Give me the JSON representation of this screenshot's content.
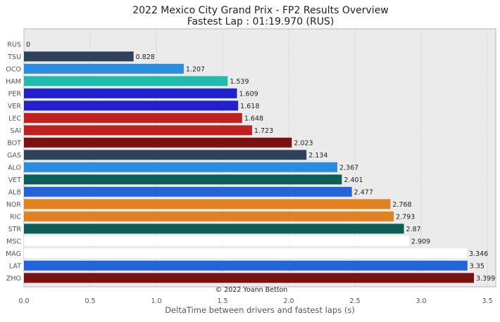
{
  "chart_data": {
    "type": "bar",
    "orientation": "horizontal",
    "title": "2022 Mexico City Grand Prix - FP2 Results Overview",
    "subtitle": "Fastest Lap : 01:19.970 (RUS)",
    "xlabel": "DeltaTime between drivers and fastest laps (s)",
    "ylabel": "",
    "xlim": [
      0,
      3.55
    ],
    "xticks": [
      "0.0",
      "0.5",
      "1.0",
      "1.5",
      "2.0",
      "2.5",
      "3.0",
      "3.5"
    ],
    "grid": true,
    "watermark": "© 2022 Yoann Betton",
    "categories": [
      "RUS",
      "TSU",
      "OCO",
      "HAM",
      "PER",
      "VER",
      "LEC",
      "SAI",
      "BOT",
      "GAS",
      "ALO",
      "VET",
      "ALB",
      "NOR",
      "RIC",
      "STR",
      "MSC",
      "MAG",
      "LAT",
      "ZHO"
    ],
    "values": [
      0,
      0.828,
      1.207,
      1.539,
      1.609,
      1.618,
      1.648,
      1.723,
      2.023,
      2.134,
      2.367,
      2.401,
      2.477,
      2.768,
      2.793,
      2.87,
      2.909,
      3.346,
      3.35,
      3.399
    ],
    "value_labels": [
      "0",
      "0.828",
      "1.207",
      "1.539",
      "1.609",
      "1.618",
      "1.648",
      "1.723",
      "2.023",
      "2.134",
      "2.367",
      "2.401",
      "2.477",
      "2.768",
      "2.793",
      "2.87",
      "2.909",
      "3.346",
      "3.35",
      "3.399"
    ],
    "colors": [
      "#2bd4c0",
      "#2f4358",
      "#2b8de0",
      "#22bcaa",
      "#2222cc",
      "#2222cc",
      "#c0201e",
      "#c0201e",
      "#7a1212",
      "#2f4358",
      "#2b8de0",
      "#0e5e58",
      "#2264dd",
      "#e08220",
      "#e08220",
      "#0e5e58",
      "#ffffff",
      "#ffffff",
      "#2264dd",
      "#7a1212"
    ],
    "colors_meta": {
      "plot_bg": "#ebebeb",
      "grid": "#c4c4c4",
      "axis_text": "#555555",
      "title_text": "#222222"
    }
  }
}
